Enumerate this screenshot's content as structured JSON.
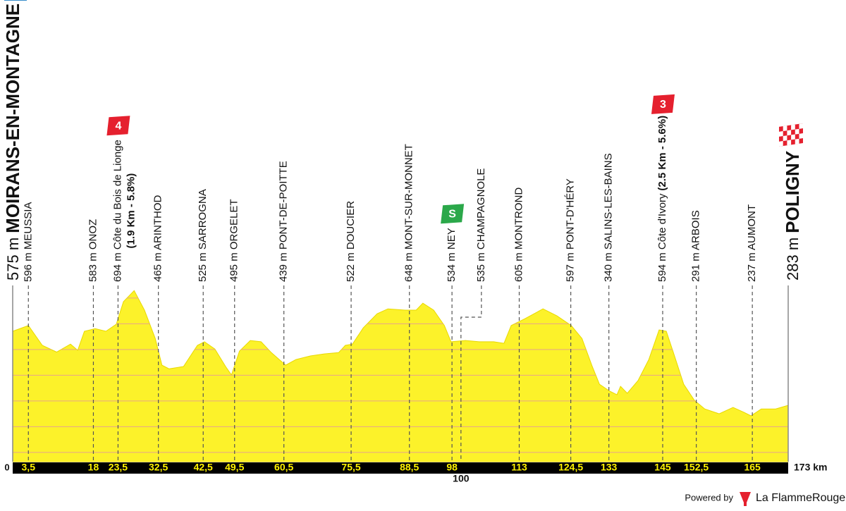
{
  "chart_data": {
    "type": "area",
    "color": "#fcf22a",
    "xlim": [
      0,
      173
    ],
    "ylim": [
      64,
      760
    ],
    "gridlines": [
      100,
      200,
      300,
      400,
      500,
      600,
      700
    ],
    "x": [
      0,
      3.5,
      6.6,
      9.8,
      12.9,
      14.5,
      16,
      18.4,
      20.8,
      23.1,
      24.7,
      27.1,
      29.4,
      31.8,
      33.3,
      34.9,
      38.1,
      41.2,
      42.8,
      45.1,
      47.5,
      48.8,
      50.6,
      53,
      55.4,
      57.7,
      60.9,
      63.2,
      66.4,
      69.5,
      72.7,
      74.2,
      75.8,
      78.2,
      81.3,
      83.7,
      87.6,
      90,
      91.5,
      93.9,
      96.3,
      97.8,
      101,
      104.1,
      107.3,
      109.6,
      111.2,
      114.3,
      118.3,
      121.4,
      124.6,
      127,
      129.3,
      130.9,
      133.2,
      134.8,
      135.6,
      137.1,
      139.5,
      141.9,
      144.2,
      145.8,
      147.4,
      149.7,
      152.1,
      154.4,
      157.6,
      160.7,
      163.1,
      164.7,
      167,
      170.2,
      173
    ],
    "values": [
      571,
      593,
      516,
      490,
      521,
      497,
      571,
      581,
      571,
      598,
      686,
      729,
      653,
      543,
      439,
      425,
      434,
      516,
      530,
      502,
      434,
      401,
      494,
      535,
      530,
      488,
      439,
      461,
      475,
      483,
      488,
      516,
      521,
      584,
      639,
      658,
      653,
      653,
      680,
      653,
      593,
      530,
      535,
      530,
      530,
      524,
      593,
      620,
      658,
      631,
      593,
      543,
      434,
      365,
      338,
      324,
      357,
      330,
      379,
      461,
      576,
      571,
      488,
      365,
      302,
      269,
      250,
      275,
      256,
      242,
      269,
      269,
      283
    ],
    "start": {
      "km": 0,
      "elevation": "575 m",
      "name": "MOIRANS-EN-MONTAGNE"
    },
    "finish": {
      "km": {
        "value": 173,
        "label": "173 km"
      },
      "elevation": "283 m",
      "name": "POLIGNY"
    },
    "waypoints": [
      {
        "km": {
          "value": 3.5,
          "label": "3,5"
        },
        "text": "596 m MEUSSIA"
      },
      {
        "km": 18,
        "text": "583 m ONOZ"
      },
      {
        "km": {
          "value": 23.5,
          "label": "23,5"
        },
        "text": "694 m Côte du Bois de Lionge",
        "detail": "(1.9 Km - 5.8%)",
        "badge": {
          "text": "4",
          "color": "#e5202e"
        }
      },
      {
        "km": {
          "value": 32.5,
          "label": "32,5"
        },
        "text": "465 m ARINTHOD"
      },
      {
        "km": {
          "value": 42.5,
          "label": "42,5"
        },
        "text": "525 m SARROGNA"
      },
      {
        "km": {
          "value": 49.5,
          "label": "49,5"
        },
        "text": "495 m ORGELET"
      },
      {
        "km": {
          "value": 60.5,
          "label": "60,5"
        },
        "text": "439 m PONT-DE-POITTE"
      },
      {
        "km": {
          "value": 75.5,
          "label": "75,5"
        },
        "text": "522 m DOUCIER"
      },
      {
        "km": {
          "value": 88.5,
          "label": "88,5"
        },
        "text": "648 m MONT-SUR-MONNET"
      },
      {
        "km": 98,
        "text": "534 m NEY",
        "badge": {
          "text": "S",
          "color": "#2ba84a"
        }
      },
      {
        "km": 100,
        "text": "535 m CHAMPAGNOLE"
      },
      {
        "km": 113,
        "text": "605 m MONTROND"
      },
      {
        "km": {
          "value": 124.5,
          "label": "124,5"
        },
        "text": "597 m PONT-D'HÉRY"
      },
      {
        "km": 133,
        "text": "340 m SALINS-LES-BAINS"
      },
      {
        "km": 145,
        "text": "594 m Côte d'Ivory",
        "detail": "(2.5 Km - 5.6%)",
        "badge": {
          "text": "3",
          "color": "#e5202e"
        }
      },
      {
        "km": {
          "value": 152.5,
          "label": "152,5"
        },
        "text": "291 m ARBOIS"
      },
      {
        "km": 165,
        "text": "237 m AUMONT"
      }
    ]
  },
  "footer": {
    "powered_by": "Powered by",
    "brand": "La FlammeRouge"
  }
}
